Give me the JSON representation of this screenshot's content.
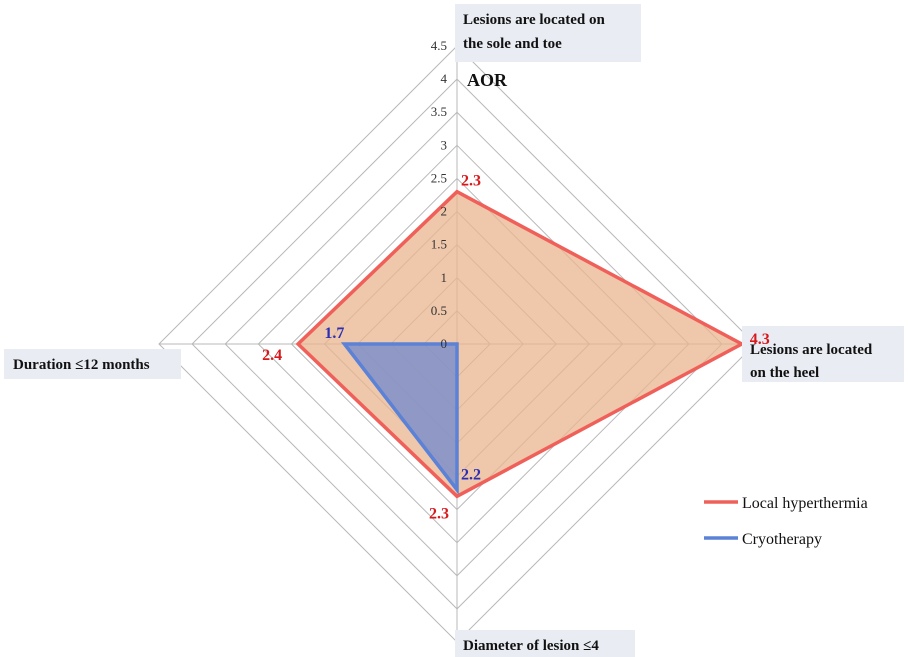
{
  "chart_data": {
    "type": "radar",
    "axis_title": "AOR",
    "categories": [
      "Lesions are located on the sole and toe",
      "Lesions are located on the heel",
      "Diameter of lesion ≤4",
      "Duration ≤12 months"
    ],
    "category_lines": [
      [
        "Lesions are located on",
        "the sole and  toe"
      ],
      [
        "Lesions are located",
        "on the heel"
      ],
      [
        "Diameter of lesion ≤4"
      ],
      [
        "Duration ≤12 months"
      ]
    ],
    "rlim": [
      0,
      4.5
    ],
    "ticks": [
      "0",
      "0.5",
      "1",
      "1.5",
      "2",
      "2.5",
      "3",
      "3.5",
      "4",
      "4.5"
    ],
    "series": [
      {
        "name": "Local hyperthermia",
        "values": [
          2.3,
          4.3,
          2.3,
          2.4
        ],
        "labels": [
          "2.3",
          "4.3",
          "2.3",
          "2.4"
        ],
        "line_color": "#f0605a",
        "fill_color": "#e9b48f"
      },
      {
        "name": "Cryotherapy",
        "values": [
          0,
          0,
          2.2,
          1.7
        ],
        "labels": [
          "",
          "",
          "2.2",
          "1.7"
        ],
        "line_color": "#5b82d6",
        "fill_color": "#7f8fc9"
      }
    ],
    "legend_position": "bottom-right"
  }
}
